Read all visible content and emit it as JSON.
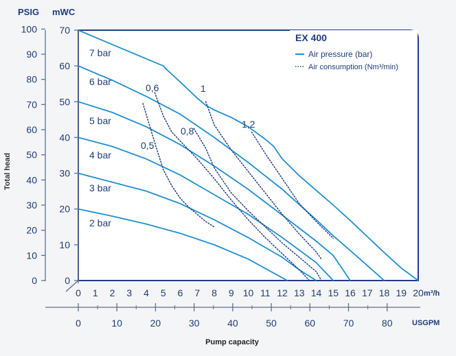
{
  "chart_data": {
    "type": "line",
    "title": "EX 400",
    "legend": {
      "position": "top-right",
      "entries": [
        "Air pressure (bar)",
        "Air consumption (Nm³/min)"
      ]
    },
    "y_axis": {
      "label": "Total head",
      "psig_unit": "PSIG",
      "mwc_unit": "mWC",
      "psig_ticks": [
        "100",
        "90",
        "80",
        "70",
        "60",
        "50",
        "40",
        "30",
        "20",
        "10",
        "0"
      ],
      "mwc_ticks": [
        "70",
        "60",
        "50",
        "40",
        "30",
        "20",
        "10",
        "0"
      ],
      "range_mwc": [
        0,
        70
      ]
    },
    "x_axis": {
      "label": "Pump capacity",
      "m3h_unit": "m³/h",
      "usgpm_unit": "USGPM",
      "m3h_ticks": [
        "0",
        "1",
        "2",
        "3",
        "4",
        "5",
        "6",
        "7",
        "8",
        "9",
        "10",
        "11",
        "12",
        "13",
        "14",
        "15",
        "16",
        "17",
        "18",
        "19",
        "20"
      ],
      "usgpm_ticks": [
        "0",
        "10",
        "20",
        "30",
        "40",
        "50",
        "60",
        "70",
        "80"
      ],
      "range_m3h": [
        0,
        20
      ]
    },
    "pressure_series": [
      {
        "name": "7 bar",
        "x": [
          0,
          2,
          4,
          5,
          5.2,
          6,
          7,
          7.5,
          8,
          9,
          10,
          11,
          11.5,
          12,
          13,
          14,
          15,
          16,
          17,
          18,
          19,
          20
        ],
        "y": [
          70,
          66,
          62,
          60,
          59,
          55.5,
          51,
          49,
          47.7,
          45.6,
          43,
          39.5,
          37.5,
          34,
          29.3,
          25.2,
          21.1,
          16.8,
          12.3,
          7.8,
          3.5,
          0
        ]
      },
      {
        "name": "6 bar",
        "x": [
          0,
          2,
          4,
          6,
          8,
          10,
          12,
          14,
          15,
          16,
          17,
          18
        ],
        "y": [
          60,
          56,
          51.5,
          46.5,
          40,
          33,
          25.5,
          17,
          12.5,
          8.4,
          4.2,
          0
        ]
      },
      {
        "name": "5 bar",
        "x": [
          0,
          2,
          4,
          6,
          8,
          10,
          12,
          14,
          15,
          16
        ],
        "y": [
          50,
          47,
          43,
          38,
          32,
          25.5,
          18.3,
          11,
          7,
          0
        ]
      },
      {
        "name": "4 bar",
        "x": [
          0,
          2,
          4,
          6,
          8,
          10,
          12,
          14,
          15
        ],
        "y": [
          40,
          37.5,
          34,
          29.5,
          24,
          18.5,
          12,
          5,
          0
        ]
      },
      {
        "name": "3 bar",
        "x": [
          0,
          2,
          4,
          6,
          8,
          10,
          12,
          13,
          14
        ],
        "y": [
          30,
          27.5,
          25,
          21.5,
          17,
          12,
          6.5,
          3,
          0
        ]
      },
      {
        "name": "2 bar",
        "x": [
          0,
          2,
          4,
          6,
          8,
          10,
          12.3
        ],
        "y": [
          20,
          18,
          15.8,
          13.2,
          10,
          6,
          0
        ]
      }
    ],
    "consumption_series": [
      {
        "name": "0,5",
        "x": [
          3.8,
          4.5,
          5,
          5.5,
          6,
          6.5,
          7,
          7.5,
          8
        ],
        "y": [
          49.5,
          38.5,
          31,
          26.5,
          23,
          20.5,
          18.5,
          16.5,
          15
        ]
      },
      {
        "name": "0,6",
        "x": [
          4.5,
          5,
          5.5,
          6,
          7,
          8,
          9,
          10,
          11,
          12,
          13,
          13.6
        ],
        "y": [
          52.5,
          46,
          41.5,
          39,
          34,
          28.5,
          22.5,
          17,
          12,
          7.5,
          3,
          0
        ]
      },
      {
        "name": "0,8",
        "x": [
          6.8,
          7.5,
          8,
          9,
          10,
          11,
          12,
          13,
          14,
          14.3
        ],
        "y": [
          42.5,
          37,
          31.5,
          24.5,
          19.5,
          15,
          10.5,
          6.5,
          2.5,
          0
        ]
      },
      {
        "name": "1",
        "x": [
          7.5,
          8,
          9,
          10,
          11,
          12,
          13,
          14,
          14.3
        ],
        "y": [
          50,
          43.5,
          36.5,
          30.5,
          24.5,
          18.5,
          13,
          8,
          6
        ]
      },
      {
        "name": "1,2",
        "x": [
          10.2,
          11,
          12,
          13,
          14,
          15
        ],
        "y": [
          41.5,
          35.5,
          28.5,
          21.5,
          16.5,
          11.8
        ]
      }
    ],
    "curve_labels": [
      "7 bar",
      "6 bar",
      "5 bar",
      "4 bar",
      "3 bar",
      "2 bar",
      "0,6",
      "1",
      "0,8",
      "0,5",
      "1,2"
    ],
    "grid": false,
    "colors": {
      "curve": "#1d8fcf",
      "dotted": "#1f3c88",
      "text": "#1d3d7a",
      "axis": "#5a6f96",
      "frame": "#1f3c88"
    }
  }
}
